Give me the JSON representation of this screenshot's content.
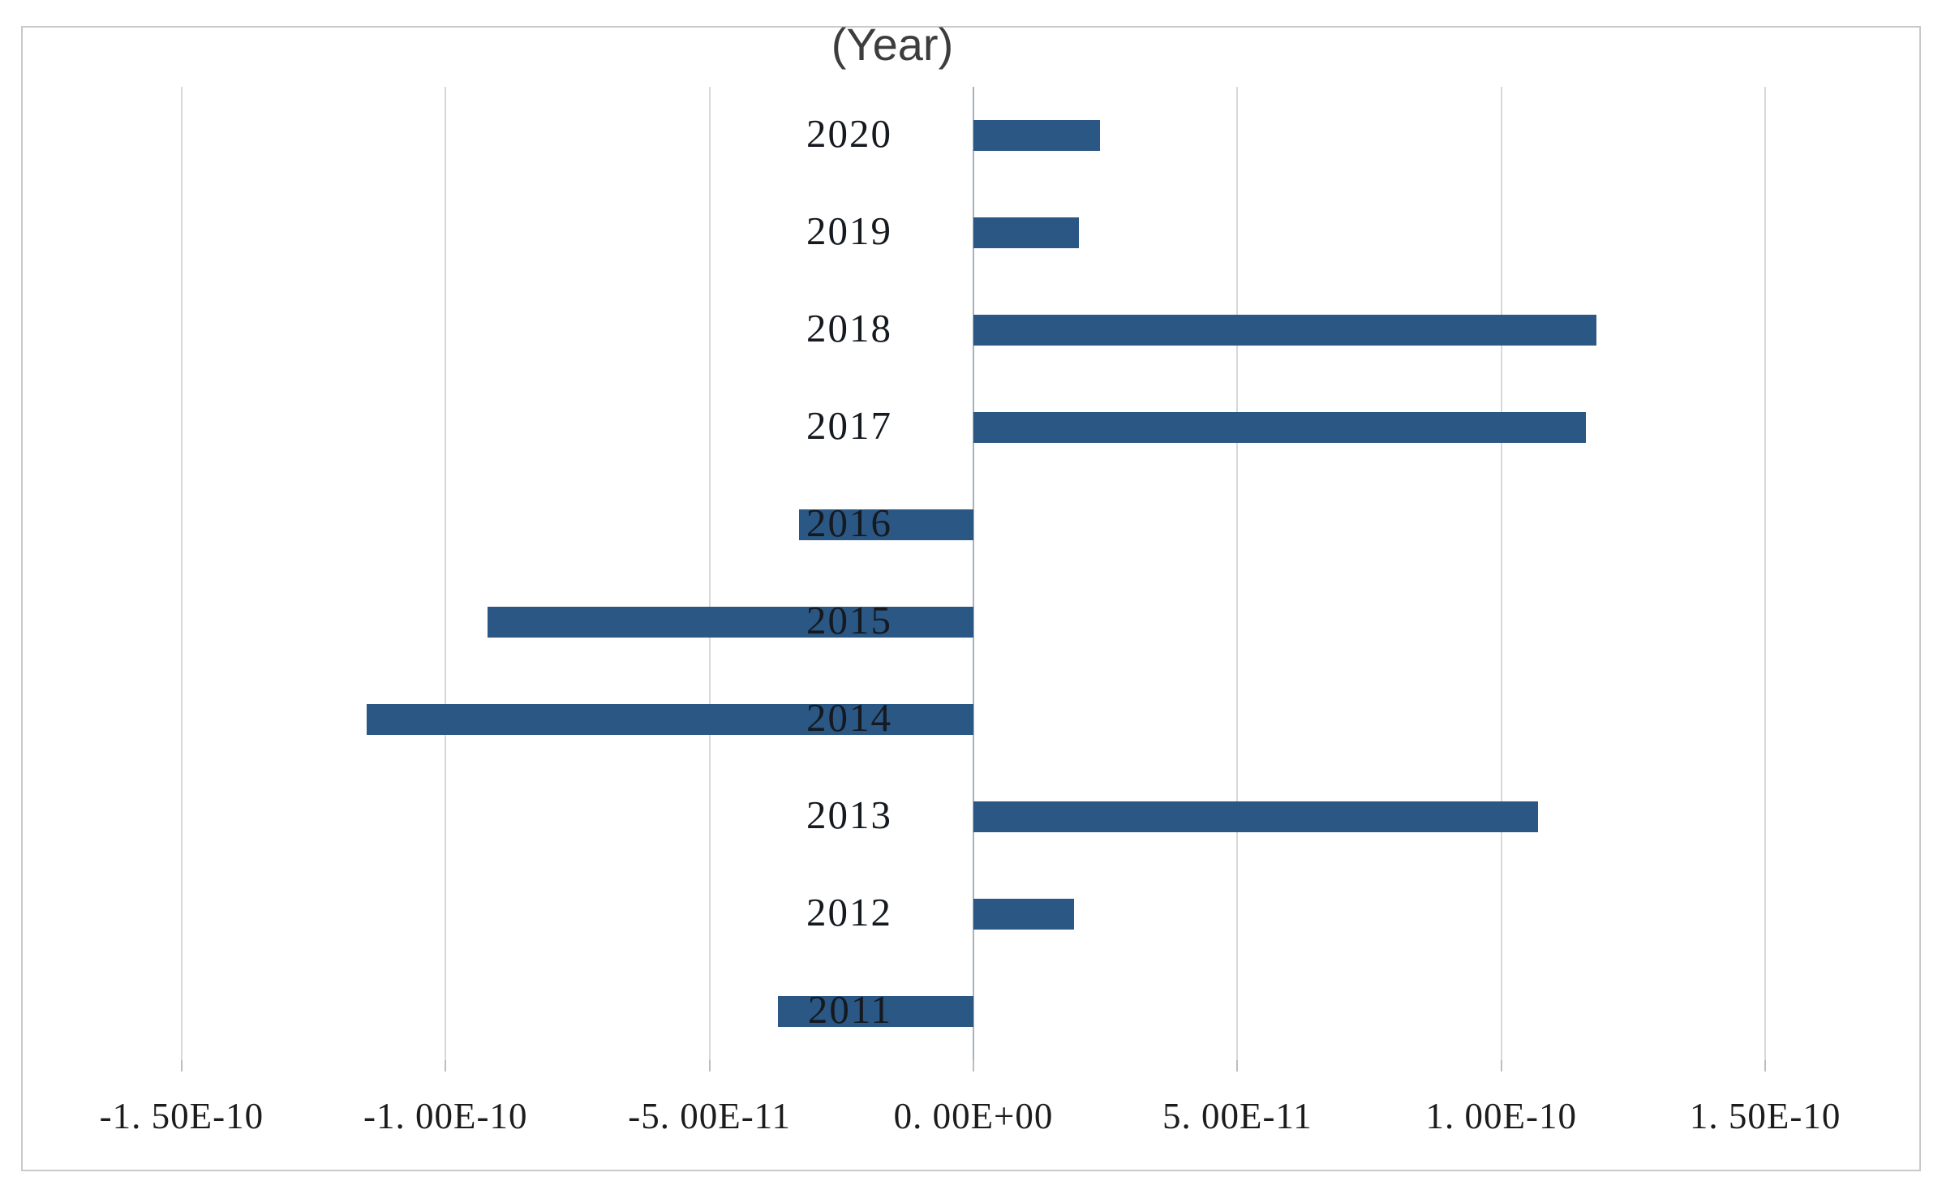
{
  "chart_data": {
    "type": "bar",
    "orientation": "horizontal",
    "title": "(Year)",
    "categories": [
      "2020",
      "2019",
      "2018",
      "2017",
      "2016",
      "2015",
      "2014",
      "2013",
      "2012",
      "2011"
    ],
    "values": [
      2.4e-11,
      2e-11,
      1.18e-10,
      1.16e-10,
      -3.3e-11,
      -9.2e-11,
      -1.15e-10,
      1.07e-10,
      1.9e-11,
      -3.7e-11
    ],
    "x_tick_values": [
      -1.5e-10,
      -1e-10,
      -5e-11,
      0,
      5e-11,
      1e-10,
      1.5e-10
    ],
    "x_tick_labels": [
      "-1. 50E-10",
      "-1. 00E-10",
      "-5. 00E-11",
      "0. 00E+00",
      "5. 00E-11",
      "1. 00E-10",
      "1. 50E-10"
    ],
    "xlim": [
      -1.675e-10,
      1.675e-10
    ],
    "grid": true,
    "legend": "none",
    "bar_color": "#2a5783",
    "gridline_color": "#d8d8d8",
    "zero_axis_color": "#a6b2bc",
    "border_color": "#c9c9c9"
  }
}
